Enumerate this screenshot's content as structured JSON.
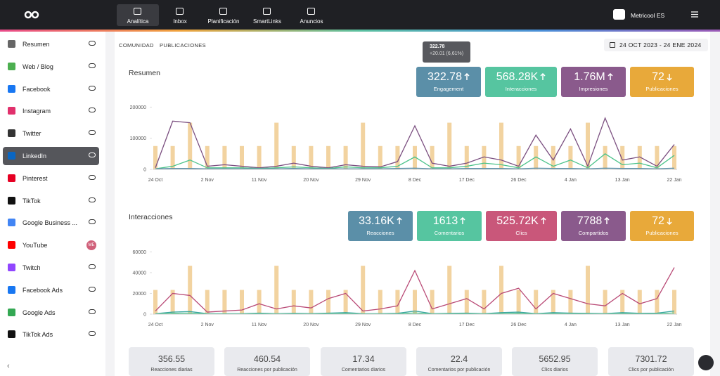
{
  "topbar": {
    "nav": [
      "Analítica",
      "Inbox",
      "Planificación",
      "SmartLinks",
      "Anuncios"
    ],
    "account": "Metricool ES"
  },
  "sidebar": {
    "items": [
      {
        "label": "Resumen",
        "color": "#666"
      },
      {
        "label": "Web / Blog",
        "color": "#4caf50"
      },
      {
        "label": "Facebook",
        "color": "#1877f2"
      },
      {
        "label": "Instagram",
        "color": "#e1306c"
      },
      {
        "label": "Twitter",
        "color": "#333"
      },
      {
        "label": "LinkedIn",
        "color": "#0a66c2"
      },
      {
        "label": "Pinterest",
        "color": "#e60023"
      },
      {
        "label": "TikTok",
        "color": "#111"
      },
      {
        "label": "Google Business ...",
        "color": "#4285f4"
      },
      {
        "label": "YouTube",
        "color": "#ff0000",
        "badge": "ME"
      },
      {
        "label": "Twitch",
        "color": "#9146ff"
      },
      {
        "label": "Facebook Ads",
        "color": "#1877f2"
      },
      {
        "label": "Google Ads",
        "color": "#34a853"
      },
      {
        "label": "TikTok Ads",
        "color": "#111"
      }
    ],
    "active": 5
  },
  "tabs": [
    "COMUNIDAD",
    "PUBLICACIONES"
  ],
  "date_range": "24 OCT 2023 - 24 ENE 2024",
  "tooltip": {
    "title": "322.78",
    "detail": "+20.01 (6,61%)"
  },
  "sections": [
    {
      "title": "Resumen",
      "kpis": [
        {
          "value": "322.78",
          "label": "Engagement",
          "color": "#5b8fa8",
          "trend": "up"
        },
        {
          "value": "568.28K",
          "label": "Interacciones",
          "color": "#56c5a0",
          "trend": "up"
        },
        {
          "value": "1.76M",
          "label": "Impresiones",
          "color": "#8a5a8c",
          "trend": "up"
        },
        {
          "value": "72",
          "label": "Publicaciones",
          "color": "#e8a93a",
          "trend": "down"
        }
      ],
      "chart_data": {
        "type": "line",
        "categories": [
          "24 Oct",
          null,
          null,
          "2 Nov",
          null,
          null,
          "11 Nov",
          null,
          null,
          "20 Nov",
          null,
          null,
          "29 Nov",
          null,
          null,
          "8 Dec",
          null,
          null,
          "17 Dec",
          null,
          null,
          "26 Dec",
          null,
          null,
          "4 Jan",
          null,
          null,
          "13 Jan",
          null,
          null,
          "22 Jan"
        ],
        "ylim": [
          0,
          210000
        ],
        "yticks": [
          0,
          100000,
          200000
        ],
        "y2lim": [
          0,
          2.8
        ],
        "grid": false,
        "series": [
          {
            "type": "bar",
            "axis": "y2",
            "color": "#f2d3a0",
            "values": [
              1,
              1,
              2,
              1,
              1,
              1,
              1,
              2,
              1,
              1,
              1,
              1,
              2,
              1,
              1,
              1,
              1,
              2,
              1,
              1,
              2,
              1,
              1,
              1,
              1,
              2,
              1,
              1,
              1,
              1,
              1
            ]
          },
          {
            "color": "#7b4f80",
            "values": [
              5000,
              155000,
              150000,
              10000,
              15000,
              10000,
              5000,
              10000,
              20000,
              10000,
              5000,
              15000,
              10000,
              8000,
              25000,
              140000,
              20000,
              10000,
              20000,
              40000,
              30000,
              10000,
              110000,
              30000,
              130000,
              10000,
              165000,
              30000,
              40000,
              10000,
              80000
            ]
          },
          {
            "color": "#4cc38a",
            "values": [
              2000,
              10000,
              30000,
              5000,
              5000,
              5000,
              3000,
              5000,
              8000,
              5000,
              3000,
              8000,
              5000,
              5000,
              10000,
              40000,
              5000,
              5000,
              10000,
              20000,
              15000,
              5000,
              40000,
              10000,
              30000,
              5000,
              50000,
              15000,
              20000,
              5000,
              45000
            ]
          },
          {
            "color": "#5b8fa8",
            "values": [
              2000,
              3000,
              3000,
              2000,
              2000,
              2000,
              2000,
              2000,
              3000,
              2000,
              2000,
              2000,
              2000,
              2000,
              3000,
              4000,
              2000,
              2000,
              3000,
              3000,
              3000,
              2000,
              4000,
              3000,
              3000,
              2000,
              4000,
              3000,
              3000,
              2000,
              4000
            ]
          }
        ]
      }
    },
    {
      "title": "Interacciones",
      "kpis": [
        {
          "value": "33.16K",
          "label": "Reacciones",
          "color": "#5b8fa8",
          "trend": "up"
        },
        {
          "value": "1613",
          "label": "Comentarios",
          "color": "#56c5a0",
          "trend": "up"
        },
        {
          "value": "525.72K",
          "label": "Clics",
          "color": "#c9577a",
          "trend": "up"
        },
        {
          "value": "7788",
          "label": "Compartidos",
          "color": "#8a5a8c",
          "trend": "up"
        },
        {
          "value": "72",
          "label": "Publicaciones",
          "color": "#e8a93a",
          "trend": "down"
        }
      ],
      "chart_data": {
        "type": "line",
        "categories": [
          "24 Oct",
          null,
          null,
          "2 Nov",
          null,
          null,
          "11 Nov",
          null,
          null,
          "20 Nov",
          null,
          null,
          "29 Nov",
          null,
          null,
          "8 Dec",
          null,
          null,
          "17 Dec",
          null,
          null,
          "26 Dec",
          null,
          null,
          "4 Jan",
          null,
          null,
          "13 Jan",
          null,
          null,
          "22 Jan"
        ],
        "ylim": [
          0,
          63000
        ],
        "yticks": [
          0,
          20000,
          40000,
          60000
        ],
        "y2lim": [
          0,
          2.7
        ],
        "grid": false,
        "series": [
          {
            "type": "bar",
            "axis": "y2",
            "color": "#f2d3a0",
            "values": [
              1,
              1,
              2,
              1,
              1,
              1,
              1,
              2,
              1,
              1,
              1,
              1,
              2,
              1,
              1,
              1,
              1,
              2,
              1,
              1,
              2,
              1,
              1,
              1,
              1,
              2,
              1,
              1,
              1,
              1,
              1
            ]
          },
          {
            "color": "#b94a76",
            "values": [
              3000,
              20000,
              18000,
              2000,
              3000,
              4000,
              10000,
              5000,
              8000,
              6000,
              15000,
              20000,
              3000,
              5000,
              8000,
              42000,
              5000,
              10000,
              15000,
              5000,
              20000,
              25000,
              5000,
              20000,
              15000,
              10000,
              8000,
              20000,
              10000,
              15000,
              45000
            ]
          },
          {
            "color": "#3aa6a0",
            "values": [
              500,
              2000,
              2500,
              500,
              500,
              500,
              1000,
              500,
              800,
              600,
              1000,
              1500,
              500,
              500,
              800,
              3000,
              500,
              800,
              1000,
              500,
              1500,
              2000,
              500,
              1500,
              1000,
              800,
              600,
              1500,
              800,
              1000,
              3000
            ]
          },
          {
            "color": "#4cc38a",
            "values": [
              200,
              800,
              1000,
              200,
              200,
              200,
              400,
              200,
              300,
              200,
              400,
              600,
              200,
              200,
              300,
              1200,
              200,
              300,
              400,
              200,
              600,
              800,
              200,
              600,
              400,
              300,
              200,
              600,
              300,
              400,
              1200
            ]
          }
        ]
      }
    }
  ],
  "stats": [
    {
      "value": "356.55",
      "label": "Reacciones diarias"
    },
    {
      "value": "460.54",
      "label": "Reacciones por publicación"
    },
    {
      "value": "17.34",
      "label": "Comentarios diarios"
    },
    {
      "value": "22.4",
      "label": "Comentarios por publicación"
    },
    {
      "value": "5652.95",
      "label": "Clics diarios"
    },
    {
      "value": "7301.72",
      "label": "Clics por publicación"
    }
  ]
}
